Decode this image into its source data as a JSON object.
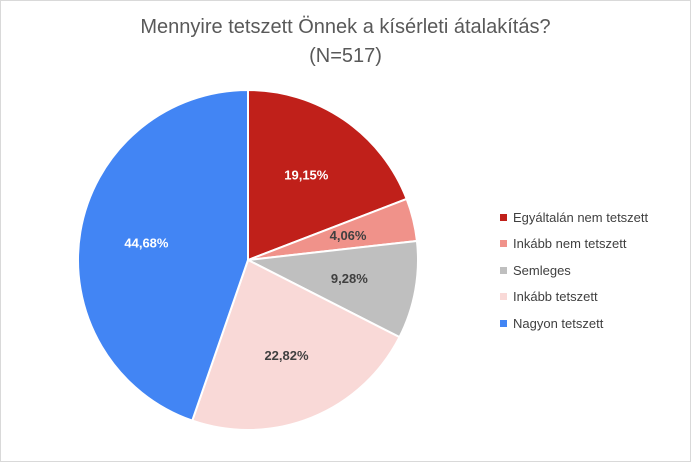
{
  "chart_data": {
    "type": "pie",
    "title": "Mennyire tetszett Önnek a kísérleti átalakítás?",
    "subtitle": "(N=517)",
    "legend_position": "right",
    "start_angle_deg": 0,
    "direction": "clockwise",
    "slices": [
      {
        "name": "Egyáltalán nem tetszett",
        "value": 19.15,
        "label": "19,15%",
        "color": "#c0201a",
        "label_color": "#ffffff"
      },
      {
        "name": "Inkább nem tetszett",
        "value": 4.06,
        "label": "4,06%",
        "color": "#f0928a",
        "label_color": "#404040"
      },
      {
        "name": "Semleges",
        "value": 9.28,
        "label": "9,28%",
        "color": "#bfbfbf",
        "label_color": "#404040"
      },
      {
        "name": "Inkább tetszett",
        "value": 22.82,
        "label": "22,82%",
        "color": "#f9d9d7",
        "label_color": "#404040"
      },
      {
        "name": "Nagyon tetszett",
        "value": 44.68,
        "label": "44,68%",
        "color": "#4285f4",
        "label_color": "#ffffff"
      }
    ]
  }
}
